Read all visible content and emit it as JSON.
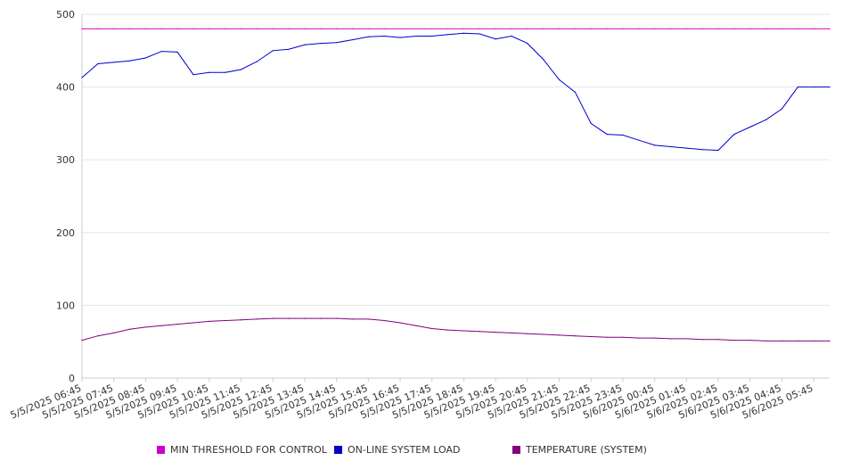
{
  "chart_data": {
    "type": "line",
    "title": "",
    "xlabel": "",
    "ylabel": "",
    "ylim": [
      0,
      500
    ],
    "yticks": [
      0,
      100,
      200,
      300,
      400,
      500
    ],
    "grid": true,
    "legend_position": "bottom",
    "x_tick_labels": [
      "5/5/2025 06:45",
      "5/5/2025 07:45",
      "5/5/2025 08:45",
      "5/5/2025 09:45",
      "5/5/2025 10:45",
      "5/5/2025 11:45",
      "5/5/2025 12:45",
      "5/5/2025 13:45",
      "5/5/2025 14:45",
      "5/5/2025 15:45",
      "5/5/2025 16:45",
      "5/5/2025 17:45",
      "5/5/2025 18:45",
      "5/5/2025 19:45",
      "5/5/2025 20:45",
      "5/5/2025 21:45",
      "5/5/2025 22:45",
      "5/5/2025 23:45",
      "5/6/2025 00:45",
      "5/6/2025 01:45",
      "5/6/2025 02:45",
      "5/6/2025 03:45",
      "5/6/2025 04:45",
      "5/6/2025 05:45"
    ],
    "x": [
      "5/5/2025 06:45",
      "5/5/2025 07:15",
      "5/5/2025 07:45",
      "5/5/2025 08:15",
      "5/5/2025 08:45",
      "5/5/2025 09:15",
      "5/5/2025 09:45",
      "5/5/2025 10:15",
      "5/5/2025 10:45",
      "5/5/2025 11:15",
      "5/5/2025 11:45",
      "5/5/2025 12:15",
      "5/5/2025 12:45",
      "5/5/2025 13:15",
      "5/5/2025 13:45",
      "5/5/2025 14:15",
      "5/5/2025 14:45",
      "5/5/2025 15:15",
      "5/5/2025 15:45",
      "5/5/2025 16:15",
      "5/5/2025 16:45",
      "5/5/2025 17:15",
      "5/5/2025 17:45",
      "5/5/2025 18:15",
      "5/5/2025 18:45",
      "5/5/2025 19:15",
      "5/5/2025 19:45",
      "5/5/2025 20:15",
      "5/5/2025 20:45",
      "5/5/2025 21:15",
      "5/5/2025 21:45",
      "5/5/2025 22:15",
      "5/5/2025 22:45",
      "5/5/2025 23:15",
      "5/5/2025 23:45",
      "5/6/2025 00:15",
      "5/6/2025 00:45",
      "5/6/2025 01:15",
      "5/6/2025 01:45",
      "5/6/2025 02:15",
      "5/6/2025 02:45",
      "5/6/2025 03:15",
      "5/6/2025 03:45",
      "5/6/2025 04:15",
      "5/6/2025 04:45",
      "5/6/2025 05:15",
      "5/6/2025 05:45",
      "5/6/2025 06:15"
    ],
    "series": [
      {
        "name": "MIN THRESHOLD FOR CONTROL",
        "color": "#cc00cc",
        "values": [
          480,
          480,
          480,
          480,
          480,
          480,
          480,
          480,
          480,
          480,
          480,
          480,
          480,
          480,
          480,
          480,
          480,
          480,
          480,
          480,
          480,
          480,
          480,
          480,
          480,
          480,
          480,
          480,
          480,
          480,
          480,
          480,
          480,
          480,
          480,
          480,
          480,
          480,
          480,
          480,
          480,
          480,
          480,
          480,
          480,
          480,
          480,
          480
        ]
      },
      {
        "name": "ON-LINE SYSTEM LOAD",
        "color": "#0000cc",
        "values": [
          413,
          432,
          434,
          436,
          440,
          449,
          448,
          417,
          420,
          420,
          424,
          435,
          450,
          452,
          458,
          460,
          461,
          465,
          469,
          470,
          468,
          470,
          470,
          472,
          474,
          473,
          466,
          470,
          460,
          438,
          410,
          393,
          350,
          335,
          334,
          327,
          320,
          318,
          316,
          314,
          313,
          335,
          345,
          355,
          370,
          400,
          400,
          400
        ]
      },
      {
        "name": "TEMPERATURE (SYSTEM)",
        "color": "#800080",
        "values": [
          52,
          58,
          62,
          67,
          70,
          72,
          74,
          76,
          78,
          79,
          80,
          81,
          82,
          82,
          82,
          82,
          82,
          81,
          81,
          79,
          76,
          72,
          68,
          66,
          65,
          64,
          63,
          62,
          61,
          60,
          59,
          58,
          57,
          56,
          56,
          55,
          55,
          54,
          54,
          53,
          53,
          52,
          52,
          51,
          51,
          51,
          51,
          51
        ]
      }
    ]
  }
}
